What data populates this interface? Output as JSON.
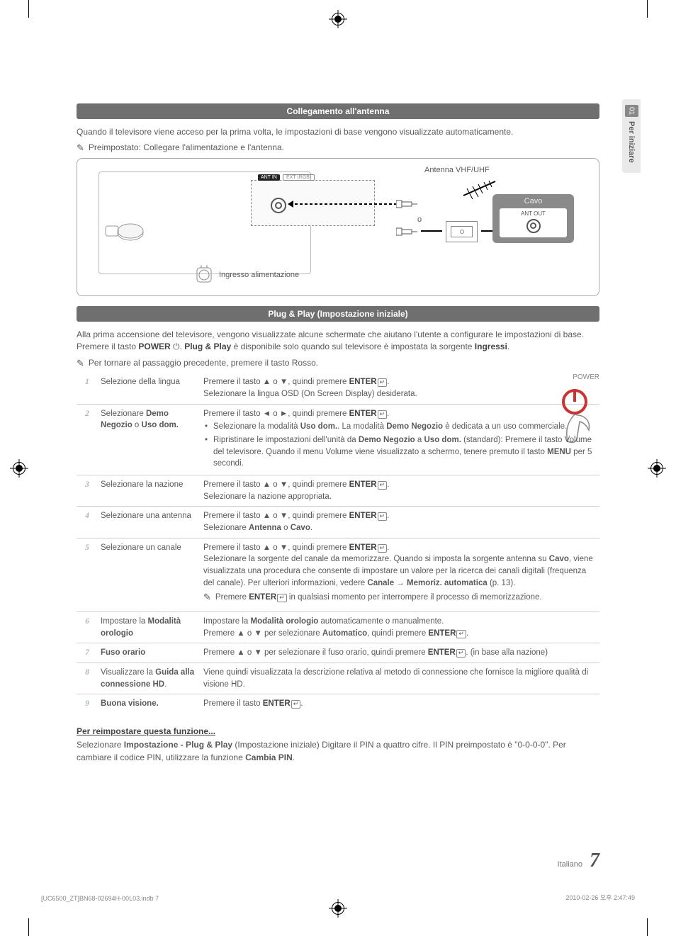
{
  "side_tab": {
    "num": "01",
    "label": "Per iniziare"
  },
  "section1": {
    "title": "Collegamento all'antenna",
    "para": "Quando il televisore viene acceso per la prima volta, le impostazioni di base vengono visualizzate automaticamente.",
    "note": "Preimpostato: Collegare l'alimentazione e l'antenna."
  },
  "diagram": {
    "antenna": "Antenna VHF/UHF",
    "ant_in": "ANT IN",
    "ext": "EXT (RGB)",
    "or": "o",
    "ingresso": "Ingresso alimentazione",
    "cavo_title": "Cavo",
    "cavo_port": "ANT OUT"
  },
  "section2": {
    "title": "Plug & Play (Impostazione iniziale)",
    "para1a": "Alla prima accensione del televisore, vengono visualizzate alcune schermate che aiutano l'utente a configurare le impostazioni di base. Premere il tasto ",
    "para1_power": "POWER",
    "para1b": ". ",
    "para1_pp": "Plug & Play",
    "para1c": " è disponibile solo quando sul televisore è impostata la sorgente ",
    "para1_ing": "Ingressi",
    "para1d": ".",
    "note": "Per tornare al passaggio precedente, premere il tasto Rosso.",
    "power_label": "POWER"
  },
  "steps": [
    {
      "num": "1",
      "label": "Selezione della lingua",
      "body_lines": [
        "Premere il tasto ▲ o ▼, quindi premere ENTER↵.",
        "Selezionare la lingua OSD (On Screen Display) desiderata."
      ]
    },
    {
      "num": "2",
      "label_html": "Selezionare <b>Demo Negozio</b> o <b>Uso dom.</b>",
      "body_intro": "Premere il tasto ◄ o ►, quindi premere ENTER↵.",
      "bullets": [
        "Selezionare la modalità <b>Uso dom.</b>. La modalità <b>Demo Negozio</b> è dedicata a un uso commerciale.",
        "Ripristinare le impostazioni dell'unità da <b>Demo Negozio</b> a <b>Uso dom.</b> (standard): Premere il tasto Volume del televisore. Quando il menu Volume viene visualizzato a schermo, tenere premuto il tasto <b>MENU</b> per 5 secondi."
      ]
    },
    {
      "num": "3",
      "label": "Selezionare la nazione",
      "body_lines": [
        "Premere il tasto ▲ o ▼, quindi premere ENTER↵.",
        "Selezionare la nazione appropriata."
      ]
    },
    {
      "num": "4",
      "label": "Selezionare una antenna",
      "body_lines": [
        "Premere il tasto ▲ o ▼, quindi premere ENTER↵.",
        "Selezionare <b>Antenna</b> o <b>Cavo</b>."
      ]
    },
    {
      "num": "5",
      "label": "Selezionare un canale",
      "body_lines": [
        "Premere il tasto ▲ o ▼, quindi premere ENTER↵.",
        "Selezionare la sorgente del canale da memorizzare. Quando si imposta la sorgente antenna su <b>Cavo</b>, viene visualizzata una procedura che consente di impostare un valore per la ricerca dei canali digitali (frequenza del canale). Per ulteriori informazioni, vedere <b>Canale → Memoriz. automatica</b> (p. 13)."
      ],
      "note": "Premere ENTER↵ in qualsiasi momento per interrompere il processo di memorizzazione."
    },
    {
      "num": "6",
      "label_html": "Impostare la <b>Modalità orologio</b>",
      "body_lines": [
        "Impostare la <b>Modalità orologio</b> automaticamente o manualmente.",
        "Premere ▲ o ▼ per selezionare <b>Automatico</b>, quindi premere ENTER↵."
      ]
    },
    {
      "num": "7",
      "label_html": "<b>Fuso orario</b>",
      "body_lines": [
        "Premere ▲ o ▼ per selezionare il fuso orario, quindi premere ENTER↵.  (in base alla nazione)"
      ]
    },
    {
      "num": "8",
      "label_html": "Visualizzare la <b>Guida alla connessione HD</b>.",
      "body_lines": [
        "Viene quindi visualizzata la descrizione relativa al metodo di connessione che fornisce la migliore qualità di visione HD."
      ]
    },
    {
      "num": "9",
      "label_html": "<b>Buona visione.</b>",
      "body_lines": [
        "Premere il tasto ENTER↵."
      ]
    }
  ],
  "reset": {
    "heading": "Per reimpostare questa funzione...",
    "body": "Selezionare <b>Impostazione - Plug & Play</b> (Impostazione iniziale) Digitare il PIN a quattro cifre. Il PIN preimpostato è \"0-0-0-0\". Per cambiare il codice PIN, utilizzare la funzione  <b>Cambia PIN</b>."
  },
  "footer": {
    "lang": "Italiano",
    "page": "7",
    "left": "[UC6500_ZT]BN68-02694H-00L03.indb   7",
    "right": "2010-02-26   오후 2:47:49"
  }
}
